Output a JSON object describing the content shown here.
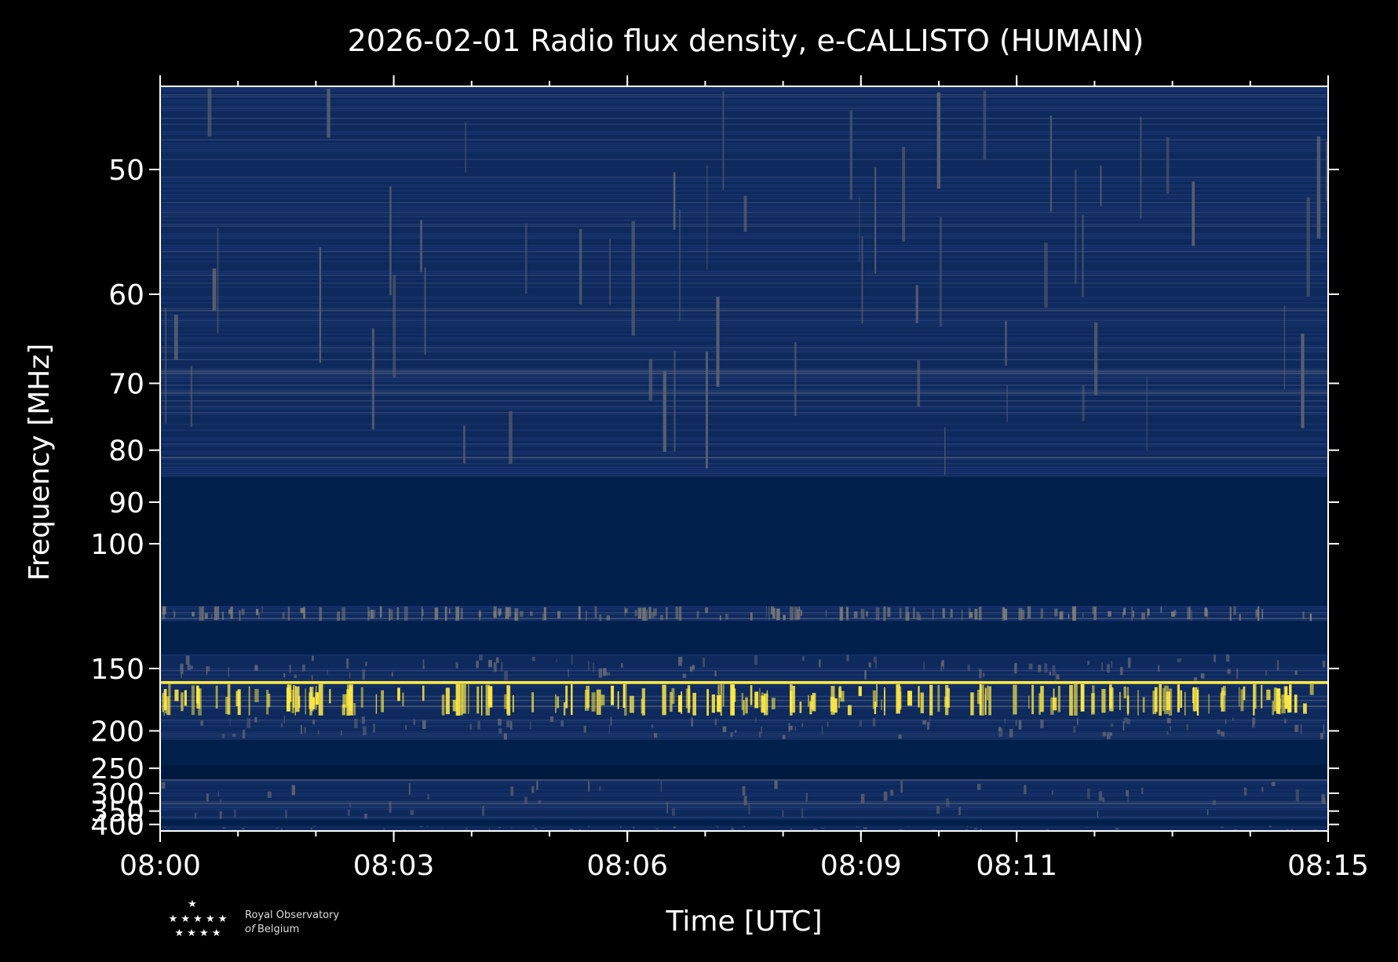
{
  "chart_data": {
    "type": "heatmap",
    "title": "2026-02-01 Radio flux density, e-CALLISTO (HUMAIN)",
    "xlabel": "Time [UTC]",
    "ylabel": "Frequency [MHz]",
    "x_ticks": [
      "08:00",
      "08:03",
      "08:06",
      "08:09",
      "08:11",
      "08:15"
    ],
    "x_range": [
      "08:00",
      "08:15"
    ],
    "y_ticks": [
      50,
      60,
      70,
      80,
      90,
      100,
      150,
      200,
      250,
      300,
      350,
      400
    ],
    "y_scale": "reciprocal",
    "y_range": [
      45,
      430
    ],
    "colormap": "cividis",
    "colors": {
      "background": "#000000",
      "low": "#00204c",
      "mid": "#7c7b78",
      "high": "#ffe945",
      "text": "#ffffff"
    },
    "data_bands": [
      {
        "from": 45,
        "to": 85,
        "level": "low-noise"
      },
      {
        "from": 85,
        "to": 120,
        "level": "empty"
      },
      {
        "from": 120,
        "to": 126,
        "level": "bursty"
      },
      {
        "from": 126,
        "to": 142,
        "level": "empty"
      },
      {
        "from": 142,
        "to": 158,
        "level": "noise"
      },
      {
        "from": 158,
        "to": 160,
        "level": "saturated"
      },
      {
        "from": 160,
        "to": 185,
        "level": "bursty-strong"
      },
      {
        "from": 185,
        "to": 210,
        "level": "noise"
      },
      {
        "from": 210,
        "to": 245,
        "level": "empty"
      },
      {
        "from": 245,
        "to": 270,
        "level": "empty-dark"
      },
      {
        "from": 270,
        "to": 380,
        "level": "low-noise"
      },
      {
        "from": 380,
        "to": 405,
        "level": "empty"
      },
      {
        "from": 405,
        "to": 430,
        "level": "low-noise"
      }
    ]
  },
  "logo": {
    "line1": "Royal Observatory",
    "line2_italic": "of",
    "line2": "Belgium"
  }
}
